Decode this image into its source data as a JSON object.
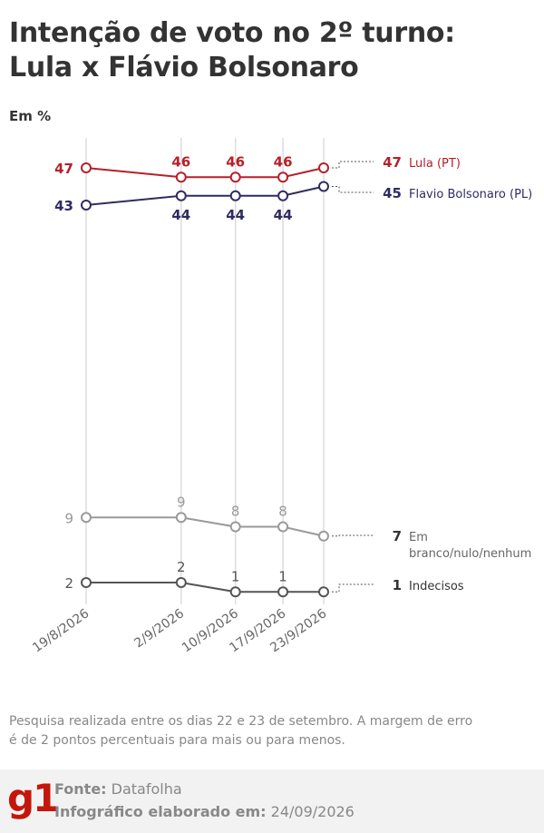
{
  "header": {
    "title_line1": "Intenção de voto no 2º turno:",
    "title_line2": "Lula x Flávio Bolsonaro",
    "unit": "Em %"
  },
  "chart_data": {
    "type": "line",
    "categories": [
      "19/8/2026",
      "2/9/2026",
      "10/9/2026",
      "17/9/2026",
      "23/9/2026"
    ],
    "series": [
      {
        "name": "Lula (PT)",
        "values": [
          47,
          46,
          46,
          46,
          47
        ],
        "color": "#b5202b"
      },
      {
        "name": "Flavio Bolsonaro (PL)",
        "values": [
          43,
          44,
          44,
          44,
          45
        ],
        "color": "#2f2c61"
      },
      {
        "name": "Em branco/nulo/nenhum",
        "values": [
          9,
          9,
          8,
          8,
          7
        ],
        "color": "#9a9a9a"
      },
      {
        "name": "Indecisos",
        "values": [
          2,
          2,
          1,
          1,
          1
        ],
        "color": "#555555"
      }
    ],
    "grid": "vertical lines at each date",
    "legend": "right, inline labels"
  },
  "note": "Pesquisa realizada entre os dias 22 e 23 de setembro. A margem de erro é de 2 pontos percentuais para mais ou para menos.",
  "footer": {
    "logo": "g1",
    "source_label": "Fonte:",
    "source_value": "Datafolha",
    "date_label": "Infográfico elaborado em:",
    "date_value": "24/09/2026"
  }
}
